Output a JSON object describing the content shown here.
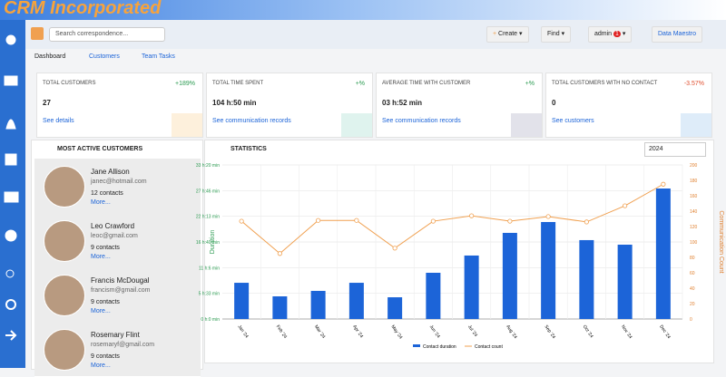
{
  "header": {
    "title": "CRM Incorporated"
  },
  "toolbar": {
    "search_placeholder": "Search correspondence...",
    "buttons": [
      "Create",
      "Find",
      "admin",
      "Data Maestro"
    ],
    "notification_count": 1
  },
  "tabs": [
    "Dashboard",
    "Customers",
    "Team Tasks"
  ],
  "cards": [
    {
      "title": "TOTAL CUSTOMERS",
      "change": "+189%",
      "value": 27,
      "link": "See details"
    },
    {
      "title": "TOTAL TIME SPENT",
      "change": "+%",
      "value": "104 h:50 min",
      "link": "See communication records"
    },
    {
      "title": "AVERAGE TIME WITH CUSTOMER",
      "change": "+%",
      "value": "03 h:52 min",
      "link": "See communication records"
    },
    {
      "title": "TOTAL CUSTOMERS WITH NO CONTACT",
      "change": "-3.57%",
      "value": 0,
      "link": "See customers"
    }
  ],
  "active_customers": {
    "title": "MOST ACTIVE CUSTOMERS",
    "customers": [
      {
        "name": "Jane Allison",
        "email": "janec@hotmail.com",
        "contacts": "12 contacts",
        "more": "More..."
      },
      {
        "name": "Leo Crawford",
        "email": "leoc@gmail.com",
        "contacts": "9 contacts",
        "more": "More..."
      },
      {
        "name": "Francis McDougal",
        "email": "francism@gmail.com",
        "contacts": "9 contacts",
        "more": "More..."
      },
      {
        "name": "Rosemary Flint",
        "email": "rosemaryf@gmail.com",
        "contacts": "9 contacts",
        "more": "More..."
      }
    ]
  },
  "statistics": {
    "title": "STATISTICS",
    "year": 2024,
    "chart": {
      "type": "bar-line",
      "categories": [
        "Jan '24",
        "Feb '24",
        "Mar '24",
        "Apr '24",
        "May '24",
        "Jun '24",
        "Jul '24",
        "Aug '24",
        "Sep '24",
        "Oct '24",
        "Nov '24",
        "Dec '24"
      ],
      "ylabel": "Duration",
      "y2label": "Communication Count",
      "ylim": [
        0,
        2000
      ],
      "yticks": [
        {
          "value": 0,
          "label": "0 h:0 min"
        },
        {
          "value": 333.33,
          "label": "5 h:33 min"
        },
        {
          "value": 666.67,
          "label": "11 h:6 min"
        },
        {
          "value": 1000,
          "label": "16 h:40 min"
        },
        {
          "value": 1333.33,
          "label": "22 h:13 min"
        },
        {
          "value": 1666.67,
          "label": "27 h:46 min"
        },
        {
          "value": 2000,
          "label": "33 h:20 min"
        }
      ],
      "y2lim": [
        0,
        200
      ],
      "y2ticks": [
        0,
        20,
        40,
        60,
        80,
        100,
        120,
        140,
        160,
        180,
        200
      ],
      "grid": true,
      "series": [
        {
          "name": "Contact duration",
          "type": "bar",
          "color": "#1c64d8",
          "values": [
            470,
            294,
            365,
            470,
            282,
            600,
            824,
            1118,
            1259,
            1024,
            965,
            1694
          ]
        },
        {
          "name": "Contact count",
          "type": "line",
          "axis": "y2",
          "color": "#f0a050",
          "values": [
            127,
            85,
            128,
            128,
            92,
            127,
            134,
            127,
            133,
            126,
            147,
            175
          ]
        }
      ]
    }
  }
}
